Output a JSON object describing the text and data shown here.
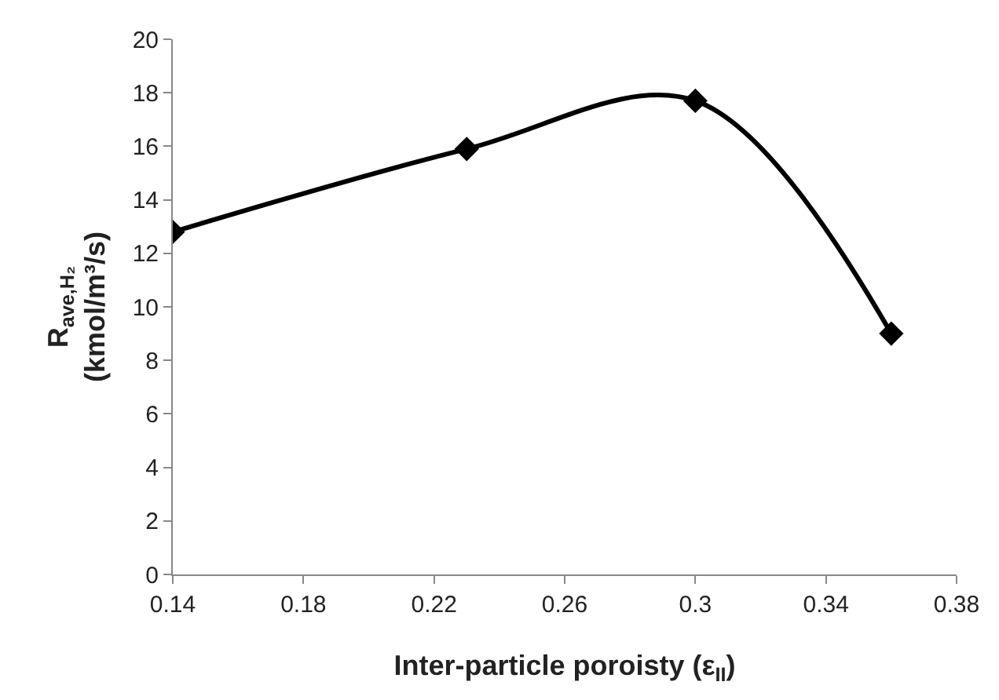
{
  "chart_data": {
    "type": "line",
    "xlabel": "Inter-particle poroisty (ε$_{II}$)",
    "ylabel": "R$_{ave,H₂}$\n(kmol/m³/s)",
    "x": [
      0.14,
      0.23,
      0.3,
      0.36
    ],
    "series": [
      {
        "color": "#000000",
        "values": [
          12.8,
          15.9,
          17.7,
          9.0
        ]
      }
    ],
    "xlim": [
      0.14,
      0.38
    ],
    "xticks": [
      0.14,
      0.18,
      0.22,
      0.26,
      0.3,
      0.34,
      0.38
    ],
    "ylim": [
      0,
      20
    ],
    "yticks": [
      0,
      2,
      4,
      6,
      8,
      10,
      12,
      14,
      16,
      18,
      20
    ],
    "grid": false,
    "marker": "diamond",
    "line_style": "solid"
  }
}
